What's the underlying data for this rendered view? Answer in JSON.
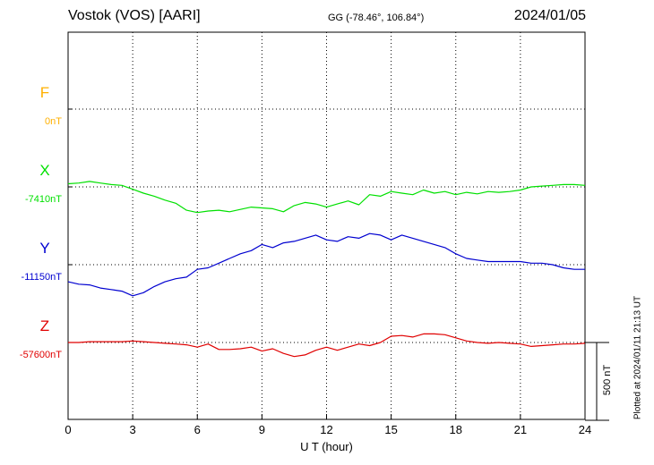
{
  "header": {
    "station": "Vostok (VOS)  [AARI]",
    "coords": "GG (-78.46°, 106.84°)",
    "date": "2024/01/05"
  },
  "plotted_text": "Plotted at 2024/01/11 21:13 UT",
  "scale_text": "500 nT",
  "colors": {
    "F": "#ffb000",
    "X": "#00e000",
    "Y": "#0000d0",
    "Z": "#e00000",
    "grid": "#000000"
  },
  "chart_data": {
    "type": "line",
    "xlabel": "U T (hour)",
    "xlim": [
      0,
      24
    ],
    "xticks": [
      0,
      3,
      6,
      9,
      12,
      15,
      18,
      21,
      24
    ],
    "x_tick_labels": [
      "0",
      "3",
      "6",
      "9",
      "12",
      "15",
      "18",
      "21",
      "24"
    ],
    "scale_bar_nT": 500,
    "series": [
      {
        "name": "F",
        "baseline_label": "0nT",
        "baseline": 0,
        "x": [],
        "values": []
      },
      {
        "name": "X",
        "baseline_label": "-7410nT",
        "baseline": -7410,
        "x": [
          0,
          0.5,
          1,
          1.5,
          2,
          2.5,
          3,
          3.5,
          4,
          4.5,
          5,
          5.5,
          6,
          6.5,
          7,
          7.5,
          8,
          8.5,
          9,
          9.5,
          10,
          10.5,
          11,
          11.5,
          12,
          12.5,
          13,
          13.5,
          14,
          14.5,
          15,
          15.5,
          16,
          16.5,
          17,
          17.5,
          18,
          18.5,
          19,
          19.5,
          20,
          20.5,
          21,
          21.5,
          22,
          22.5,
          23,
          23.5,
          24
        ],
        "values": [
          -7390,
          -7385,
          -7375,
          -7385,
          -7395,
          -7400,
          -7425,
          -7450,
          -7470,
          -7495,
          -7515,
          -7560,
          -7575,
          -7565,
          -7560,
          -7570,
          -7555,
          -7540,
          -7545,
          -7550,
          -7570,
          -7530,
          -7510,
          -7520,
          -7540,
          -7520,
          -7500,
          -7525,
          -7460,
          -7470,
          -7440,
          -7450,
          -7460,
          -7430,
          -7450,
          -7440,
          -7460,
          -7445,
          -7455,
          -7440,
          -7445,
          -7440,
          -7430,
          -7410,
          -7405,
          -7400,
          -7395,
          -7395,
          -7400
        ]
      },
      {
        "name": "Y",
        "baseline_label": "-11150nT",
        "baseline": -11150,
        "x": [
          0,
          0.5,
          1,
          1.5,
          2,
          2.5,
          3,
          3.5,
          4,
          4.5,
          5,
          5.5,
          6,
          6.5,
          7,
          7.5,
          8,
          8.5,
          9,
          9.5,
          10,
          10.5,
          11,
          11.5,
          12,
          12.5,
          13,
          13.5,
          14,
          14.5,
          15,
          15.5,
          16,
          16.5,
          17,
          17.5,
          18,
          18.5,
          19,
          19.5,
          20,
          20.5,
          21,
          21.5,
          22,
          22.5,
          23,
          23.5,
          24
        ],
        "values": [
          -11260,
          -11275,
          -11280,
          -11300,
          -11310,
          -11320,
          -11350,
          -11330,
          -11290,
          -11260,
          -11240,
          -11230,
          -11180,
          -11170,
          -11140,
          -11110,
          -11080,
          -11060,
          -11020,
          -11040,
          -11010,
          -11000,
          -10980,
          -10960,
          -10990,
          -11000,
          -10970,
          -10980,
          -10950,
          -10960,
          -10990,
          -10960,
          -10980,
          -11000,
          -11020,
          -11040,
          -11080,
          -11110,
          -11120,
          -11130,
          -11130,
          -11130,
          -11130,
          -11140,
          -11140,
          -11150,
          -11170,
          -11180,
          -11180
        ]
      },
      {
        "name": "Z",
        "baseline_label": "-57600nT",
        "baseline": -57600,
        "x": [
          0,
          0.5,
          1,
          1.5,
          2,
          2.5,
          3,
          3.5,
          4,
          4.5,
          5,
          5.5,
          6,
          6.5,
          7,
          7.5,
          8,
          8.5,
          9,
          9.5,
          10,
          10.5,
          11,
          11.5,
          12,
          12.5,
          13,
          13.5,
          14,
          14.5,
          15,
          15.5,
          16,
          16.5,
          17,
          17.5,
          18,
          18.5,
          19,
          19.5,
          20,
          20.5,
          21,
          21.5,
          22,
          22.5,
          23,
          23.5,
          24
        ],
        "values": [
          -57600,
          -57600,
          -57595,
          -57595,
          -57595,
          -57595,
          -57590,
          -57595,
          -57600,
          -57605,
          -57610,
          -57615,
          -57630,
          -57610,
          -57645,
          -57645,
          -57640,
          -57630,
          -57655,
          -57640,
          -57670,
          -57690,
          -57680,
          -57650,
          -57630,
          -57650,
          -57630,
          -57610,
          -57620,
          -57600,
          -57560,
          -57555,
          -57565,
          -57545,
          -57545,
          -57550,
          -57570,
          -57590,
          -57600,
          -57605,
          -57600,
          -57605,
          -57610,
          -57625,
          -57620,
          -57615,
          -57610,
          -57610,
          -57605
        ]
      }
    ]
  }
}
